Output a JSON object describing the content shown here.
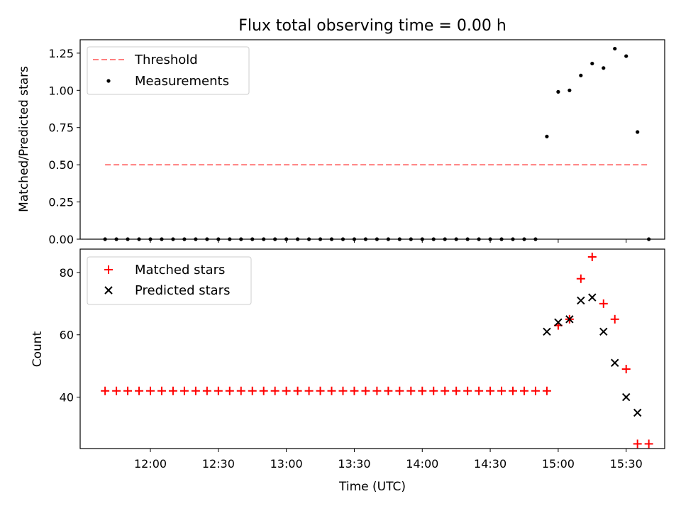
{
  "title": "Flux total observing time = 0.00 h",
  "xlabel": "Time (UTC)",
  "x_ticks": [
    "12:00",
    "12:30",
    "13:00",
    "13:30",
    "14:00",
    "14:30",
    "15:00",
    "15:30"
  ],
  "colors": {
    "threshold": "#ff7f7f",
    "measurement": "#000000",
    "matched": "#ff0000",
    "predicted": "#000000"
  },
  "chart_data": [
    {
      "type": "scatter",
      "ylabel": "Matched/Predicted stars",
      "ylim": [
        0,
        1.34
      ],
      "y_ticks": [
        "0.00",
        "0.25",
        "0.50",
        "0.75",
        "1.00",
        "1.25"
      ],
      "xlim": [
        "11:29",
        "15:47"
      ],
      "legend_position": "top-left",
      "series": [
        {
          "name": "Threshold",
          "style": "dashed-line",
          "color": "#ff7f7f",
          "x": [
            "11:40",
            "15:40"
          ],
          "y": [
            0.5,
            0.5
          ]
        },
        {
          "name": "Measurements",
          "style": "dot",
          "color": "#000000",
          "x": [
            "11:40",
            "11:45",
            "11:50",
            "11:55",
            "12:00",
            "12:05",
            "12:10",
            "12:15",
            "12:20",
            "12:25",
            "12:30",
            "12:35",
            "12:40",
            "12:45",
            "12:50",
            "12:55",
            "13:00",
            "13:05",
            "13:10",
            "13:15",
            "13:20",
            "13:25",
            "13:30",
            "13:35",
            "13:40",
            "13:45",
            "13:50",
            "13:55",
            "14:00",
            "14:05",
            "14:10",
            "14:15",
            "14:20",
            "14:25",
            "14:30",
            "14:35",
            "14:40",
            "14:45",
            "14:50",
            "14:55",
            "15:00",
            "15:05",
            "15:10",
            "15:15",
            "15:20",
            "15:25",
            "15:30",
            "15:35",
            "15:40"
          ],
          "y": [
            0,
            0,
            0,
            0,
            0,
            0,
            0,
            0,
            0,
            0,
            0,
            0,
            0,
            0,
            0,
            0,
            0,
            0,
            0,
            0,
            0,
            0,
            0,
            0,
            0,
            0,
            0,
            0,
            0,
            0,
            0,
            0,
            0,
            0,
            0,
            0,
            0,
            0,
            0,
            0.69,
            0.99,
            1.0,
            1.1,
            1.18,
            1.15,
            1.28,
            1.23,
            0.72,
            0
          ]
        }
      ]
    },
    {
      "type": "scatter",
      "ylabel": "Count",
      "ylim": [
        23.5,
        87.5
      ],
      "y_ticks": [
        "40",
        "60",
        "80"
      ],
      "xlim": [
        "11:29",
        "15:47"
      ],
      "legend_position": "top-left",
      "series": [
        {
          "name": "Matched stars",
          "style": "plus",
          "color": "#ff0000",
          "x": [
            "11:40",
            "11:45",
            "11:50",
            "11:55",
            "12:00",
            "12:05",
            "12:10",
            "12:15",
            "12:20",
            "12:25",
            "12:30",
            "12:35",
            "12:40",
            "12:45",
            "12:50",
            "12:55",
            "13:00",
            "13:05",
            "13:10",
            "13:15",
            "13:20",
            "13:25",
            "13:30",
            "13:35",
            "13:40",
            "13:45",
            "13:50",
            "13:55",
            "14:00",
            "14:05",
            "14:10",
            "14:15",
            "14:20",
            "14:25",
            "14:30",
            "14:35",
            "14:40",
            "14:45",
            "14:50",
            "14:55",
            "15:00",
            "15:05",
            "15:10",
            "15:15",
            "15:20",
            "15:25",
            "15:30",
            "15:35",
            "15:40"
          ],
          "y": [
            42,
            42,
            42,
            42,
            42,
            42,
            42,
            42,
            42,
            42,
            42,
            42,
            42,
            42,
            42,
            42,
            42,
            42,
            42,
            42,
            42,
            42,
            42,
            42,
            42,
            42,
            42,
            42,
            42,
            42,
            42,
            42,
            42,
            42,
            42,
            42,
            42,
            42,
            42,
            42,
            63,
            65,
            78,
            85,
            70,
            65,
            49,
            25,
            25
          ]
        },
        {
          "name": "Predicted stars",
          "style": "x",
          "color": "#000000",
          "x": [
            "14:55",
            "15:00",
            "15:05",
            "15:10",
            "15:15",
            "15:20",
            "15:25",
            "15:30",
            "15:35"
          ],
          "y": [
            61,
            64,
            65,
            71,
            72,
            61,
            51,
            40,
            35
          ]
        }
      ]
    }
  ]
}
